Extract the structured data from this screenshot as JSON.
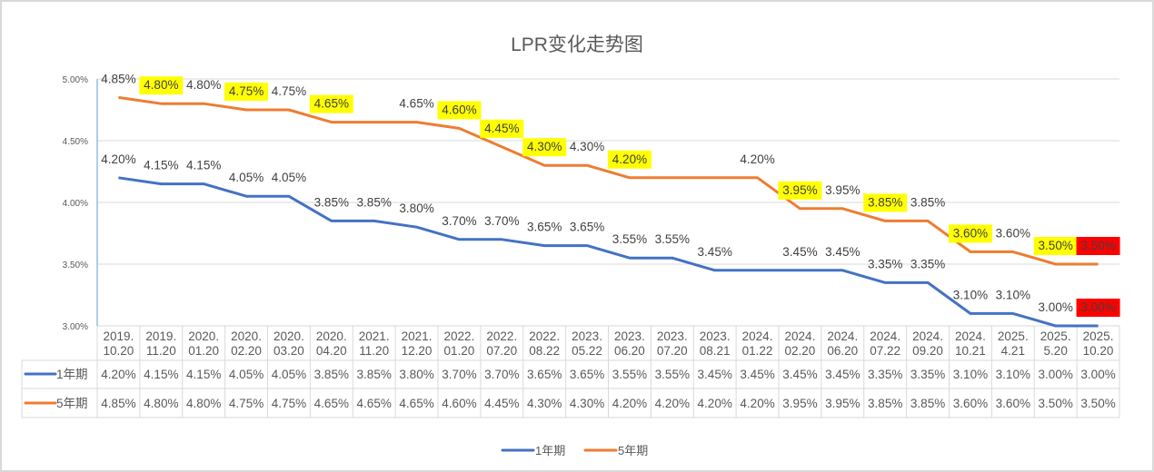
{
  "chart_data": {
    "type": "line",
    "title": "LPR变化走势图",
    "xlabel": "",
    "ylabel": "",
    "ylim": [
      0.03,
      0.05
    ],
    "yticks": [
      "5.00%",
      "4.50%",
      "4.00%",
      "3.50%",
      "3.00%"
    ],
    "ytick_values": [
      0.05,
      0.045,
      0.04,
      0.035,
      0.03
    ],
    "grid": true,
    "legend_position": "bottom",
    "data_table": true,
    "categories": [
      [
        "2019.",
        "10.20"
      ],
      [
        "2019.",
        "11.20"
      ],
      [
        "2020.",
        "01.20"
      ],
      [
        "2020.",
        "02.20"
      ],
      [
        "2020.",
        "03.20"
      ],
      [
        "2020.",
        "04.20"
      ],
      [
        "2021.",
        "11.20"
      ],
      [
        "2021.",
        "12.20"
      ],
      [
        "2022.",
        "01.20"
      ],
      [
        "2022.",
        "07.20"
      ],
      [
        "2022.",
        "08.22"
      ],
      [
        "2023.",
        "05.22"
      ],
      [
        "2023.",
        "06.20"
      ],
      [
        "2023.",
        "07.20"
      ],
      [
        "2023.",
        "08.21"
      ],
      [
        "2024.",
        "01.22"
      ],
      [
        "2024.",
        "02.20"
      ],
      [
        "2024.",
        "06.20"
      ],
      [
        "2024.",
        "07.22"
      ],
      [
        "2024.",
        "09.20"
      ],
      [
        "2024.",
        "10.21"
      ],
      [
        "2025.",
        "4.21"
      ],
      [
        "2025.",
        "5.20"
      ],
      [
        "2025.",
        "10.20"
      ]
    ],
    "series": [
      {
        "name": "1年期",
        "color": "#4472c4",
        "values": [
          0.042,
          0.0415,
          0.0415,
          0.0405,
          0.0405,
          0.0385,
          0.0385,
          0.038,
          0.037,
          0.037,
          0.0365,
          0.0365,
          0.0355,
          0.0355,
          0.0345,
          0.0345,
          0.0345,
          0.0345,
          0.0335,
          0.0335,
          0.031,
          0.031,
          0.03,
          0.03
        ],
        "labels": [
          "4.20%",
          "4.15%",
          "4.15%",
          "4.05%",
          "4.05%",
          "3.85%",
          "3.85%",
          "3.80%",
          "3.70%",
          "3.70%",
          "3.65%",
          "3.65%",
          "3.55%",
          "3.55%",
          "3.45%",
          "",
          "3.45%",
          "3.45%",
          "3.35%",
          "3.35%",
          "3.10%",
          "3.10%",
          "3.00%",
          "3.00%"
        ],
        "label_highlight": [
          "",
          "",
          "",
          "",
          "",
          "",
          "",
          "",
          "",
          "",
          "",
          "",
          "",
          "",
          "",
          "",
          "",
          "",
          "",
          "",
          "",
          "",
          "",
          "red"
        ]
      },
      {
        "name": "5年期",
        "color": "#ed7d31",
        "values": [
          0.0485,
          0.048,
          0.048,
          0.0475,
          0.0475,
          0.0465,
          0.0465,
          0.0465,
          0.046,
          0.0445,
          0.043,
          0.043,
          0.042,
          0.042,
          0.042,
          0.042,
          0.0395,
          0.0395,
          0.0385,
          0.0385,
          0.036,
          0.036,
          0.035,
          0.035
        ],
        "labels": [
          "4.85%",
          "4.80%",
          "4.80%",
          "4.75%",
          "4.75%",
          "4.65%",
          "",
          "4.65%",
          "4.60%",
          "4.45%",
          "4.30%",
          "4.30%",
          "4.20%",
          "",
          "",
          "4.20%",
          "3.95%",
          "3.95%",
          "3.85%",
          "3.85%",
          "3.60%",
          "3.60%",
          "3.50%",
          "3.50%"
        ],
        "label_highlight": [
          "",
          "yellow",
          "",
          "yellow",
          "",
          "yellow",
          "",
          "",
          "yellow",
          "yellow",
          "yellow",
          "",
          "yellow",
          "",
          "",
          "",
          "yellow",
          "",
          "yellow",
          "",
          "yellow",
          "",
          "yellow",
          "red"
        ]
      }
    ],
    "table_rows": [
      {
        "name": "1年期",
        "cells": [
          "4.20%",
          "4.15%",
          "4.15%",
          "4.05%",
          "4.05%",
          "3.85%",
          "3.85%",
          "3.80%",
          "3.70%",
          "3.70%",
          "3.65%",
          "3.65%",
          "3.55%",
          "3.55%",
          "3.45%",
          "3.45%",
          "3.45%",
          "3.45%",
          "3.35%",
          "3.35%",
          "3.10%",
          "3.10%",
          "3.00%",
          "3.00%"
        ]
      },
      {
        "name": "5年期",
        "cells": [
          "4.85%",
          "4.80%",
          "4.80%",
          "4.75%",
          "4.75%",
          "4.65%",
          "4.65%",
          "4.65%",
          "4.60%",
          "4.45%",
          "4.30%",
          "4.30%",
          "4.20%",
          "4.20%",
          "4.20%",
          "4.20%",
          "3.95%",
          "3.95%",
          "3.85%",
          "3.85%",
          "3.60%",
          "3.60%",
          "3.50%",
          "3.50%"
        ]
      }
    ]
  },
  "colors": {
    "highlight_yellow": "#ffff00",
    "highlight_red": "#ff0000",
    "grid": "#d9d9d9",
    "axis": "#5b9bd5"
  }
}
